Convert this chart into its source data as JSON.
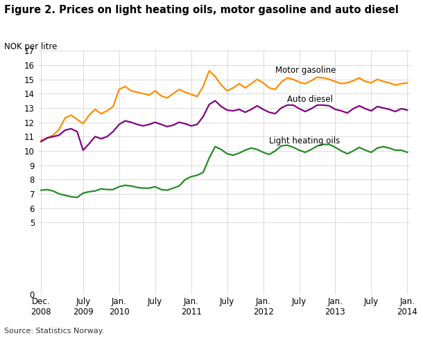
{
  "title": "Figure 2. Prices on light heating oils, motor gasoline and auto diesel",
  "ylabel": "NOK per litre",
  "source": "Source: Statistics Norway.",
  "ylim": [
    0,
    17
  ],
  "yticks": [
    0,
    5,
    6,
    7,
    8,
    9,
    10,
    11,
    12,
    13,
    14,
    15,
    16,
    17
  ],
  "background_color": "#ffffff",
  "grid_color": "#cccccc",
  "motor_gasoline_color": "#ff8c00",
  "auto_diesel_color": "#800080",
  "light_heating_color": "#228B22",
  "xtick_labels": [
    [
      "Dec.\n2008",
      0
    ],
    [
      "July\n2009",
      7
    ],
    [
      "Jan.\n2010",
      13
    ],
    [
      "July",
      19
    ],
    [
      "Jan.\n2011",
      25
    ],
    [
      "July",
      31
    ],
    [
      "Jan.\n2012",
      37
    ],
    [
      "July",
      43
    ],
    [
      "Jan.\n2013",
      49
    ],
    [
      "July",
      55
    ],
    [
      "Jan.\n2014",
      61
    ]
  ],
  "motor_gasoline": [
    10.75,
    10.9,
    11.1,
    11.5,
    12.3,
    12.5,
    12.2,
    11.9,
    12.5,
    12.9,
    12.6,
    12.8,
    13.1,
    14.3,
    14.5,
    14.2,
    14.1,
    14.0,
    13.9,
    14.2,
    13.85,
    13.7,
    14.0,
    14.3,
    14.1,
    13.95,
    13.8,
    14.5,
    15.6,
    15.2,
    14.6,
    14.2,
    14.4,
    14.7,
    14.4,
    14.7,
    15.0,
    14.75,
    14.4,
    14.3,
    14.8,
    15.1,
    15.0,
    14.8,
    14.7,
    14.9,
    15.15,
    15.1,
    15.0,
    14.85,
    14.7,
    14.75,
    14.9,
    15.1,
    14.85,
    14.75,
    15.0,
    14.85,
    14.75,
    14.6,
    14.7,
    14.75
  ],
  "auto_diesel": [
    10.65,
    10.9,
    11.0,
    11.1,
    11.45,
    11.55,
    11.35,
    10.05,
    10.5,
    11.0,
    10.85,
    11.0,
    11.35,
    11.85,
    12.1,
    12.0,
    11.85,
    11.75,
    11.85,
    12.0,
    11.85,
    11.7,
    11.8,
    12.0,
    11.9,
    11.75,
    11.85,
    12.4,
    13.25,
    13.5,
    13.1,
    12.85,
    12.8,
    12.9,
    12.7,
    12.9,
    13.15,
    12.9,
    12.7,
    12.6,
    13.0,
    13.2,
    13.2,
    12.95,
    12.75,
    12.95,
    13.2,
    13.2,
    13.15,
    12.9,
    12.8,
    12.65,
    12.95,
    13.15,
    12.95,
    12.8,
    13.1,
    13.0,
    12.9,
    12.75,
    12.95,
    12.85
  ],
  "light_heating": [
    7.25,
    7.3,
    7.2,
    7.0,
    6.9,
    6.8,
    6.75,
    7.05,
    7.15,
    7.2,
    7.35,
    7.3,
    7.3,
    7.5,
    7.6,
    7.55,
    7.45,
    7.4,
    7.4,
    7.5,
    7.3,
    7.25,
    7.4,
    7.55,
    8.0,
    8.2,
    8.3,
    8.5,
    9.5,
    10.3,
    10.1,
    9.8,
    9.7,
    9.85,
    10.05,
    10.2,
    10.1,
    9.9,
    9.75,
    10.0,
    10.35,
    10.4,
    10.25,
    10.05,
    9.9,
    10.1,
    10.35,
    10.45,
    10.45,
    10.25,
    10.0,
    9.8,
    10.0,
    10.25,
    10.05,
    9.9,
    10.2,
    10.3,
    10.2,
    10.05,
    10.05,
    9.9
  ]
}
